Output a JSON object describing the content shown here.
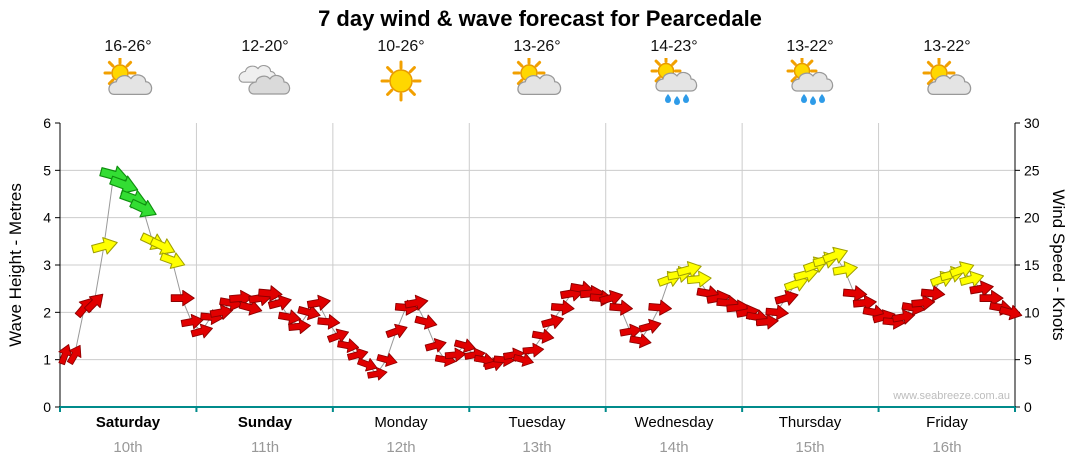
{
  "title": "7 day wind & wave forecast for Pearcedale",
  "watermark": "www.seabreeze.com.au",
  "chart_data": {
    "type": "scatter",
    "subtype": "wind-arrow-timeline",
    "title": "7 day wind & wave forecast for Pearcedale",
    "ylabel_left": "Wave Height - Metres",
    "ylabel_right": "Wind Speed - Knots",
    "left_ylim": [
      0,
      6
    ],
    "right_ylim": [
      0,
      30
    ],
    "left_ticks": [
      0,
      1,
      2,
      3,
      4,
      5,
      6
    ],
    "right_ticks": [
      0,
      5,
      10,
      15,
      20,
      25,
      30
    ],
    "grid": true,
    "legend": "none",
    "days": [
      {
        "name": "Saturday",
        "date": "10th",
        "temp_range": "16-26°",
        "icon": "partly-cloudy",
        "bold": true
      },
      {
        "name": "Sunday",
        "date": "11th",
        "temp_range": "12-20°",
        "icon": "cloudy",
        "bold": true
      },
      {
        "name": "Monday",
        "date": "12th",
        "temp_range": "10-26°",
        "icon": "sunny",
        "bold": false
      },
      {
        "name": "Tuesday",
        "date": "13th",
        "temp_range": "13-26°",
        "icon": "partly-cloudy",
        "bold": false
      },
      {
        "name": "Wednesday",
        "date": "14th",
        "temp_range": "14-23°",
        "icon": "showers",
        "bold": false
      },
      {
        "name": "Thursday",
        "date": "15th",
        "temp_range": "13-22°",
        "icon": "showers",
        "bold": false
      },
      {
        "name": "Friday",
        "date": "16th",
        "temp_range": "13-22°",
        "icon": "partly-cloudy",
        "bold": false
      }
    ],
    "points_per_day": 14,
    "dir_convention": "degrees clockwise from pointing-right",
    "series": [
      {
        "name": "Wind speed (knots) with direction arrows",
        "units": "knots",
        "points": [
          [
            5.5,
            -70
          ],
          [
            5.5,
            -60
          ],
          [
            10.5,
            -50
          ],
          [
            11,
            -45
          ],
          [
            17,
            -15
          ],
          [
            24.5,
            15
          ],
          [
            23.5,
            20
          ],
          [
            22,
            20
          ],
          [
            21,
            25
          ],
          [
            17.5,
            25
          ],
          [
            17,
            25
          ],
          [
            15.5,
            20
          ],
          [
            11.5,
            0
          ],
          [
            9,
            -10
          ],
          [
            8,
            -15
          ],
          [
            9.5,
            5
          ],
          [
            10,
            -10
          ],
          [
            11,
            10
          ],
          [
            11.5,
            -5
          ],
          [
            10.5,
            15
          ],
          [
            11.5,
            -10
          ],
          [
            12,
            5
          ],
          [
            11,
            -15
          ],
          [
            9.5,
            10
          ],
          [
            8.5,
            -5
          ],
          [
            10,
            15
          ],
          [
            11,
            -10
          ],
          [
            9,
            5
          ],
          [
            7.5,
            -20
          ],
          [
            6.5,
            10
          ],
          [
            5.5,
            -15
          ],
          [
            4.5,
            20
          ],
          [
            3.5,
            -10
          ],
          [
            5,
            15
          ],
          [
            8,
            -20
          ],
          [
            10.5,
            5
          ],
          [
            11,
            -10
          ],
          [
            9,
            15
          ],
          [
            6.5,
            -15
          ],
          [
            5,
            10
          ],
          [
            5.5,
            -5
          ],
          [
            6.5,
            15
          ],
          [
            5.5,
            -10
          ],
          [
            5,
            10
          ],
          [
            4.5,
            -15
          ],
          [
            5,
            5
          ],
          [
            5.5,
            -10
          ],
          [
            5,
            15
          ],
          [
            6,
            -5
          ],
          [
            7.5,
            10
          ],
          [
            9,
            -15
          ],
          [
            10.5,
            5
          ],
          [
            12,
            -10
          ],
          [
            12.5,
            10
          ],
          [
            12,
            -5
          ],
          [
            11.5,
            5
          ],
          [
            11.5,
            -15
          ],
          [
            10.5,
            5
          ],
          [
            8,
            -10
          ],
          [
            7,
            10
          ],
          [
            8.5,
            -15
          ],
          [
            10.5,
            5
          ],
          [
            13.5,
            -20
          ],
          [
            14,
            -10
          ],
          [
            14.5,
            -15
          ],
          [
            13.5,
            -5
          ],
          [
            12,
            10
          ],
          [
            11.5,
            -10
          ],
          [
            11,
            5
          ],
          [
            10.5,
            -5
          ],
          [
            10,
            -10
          ],
          [
            9.5,
            10
          ],
          [
            9,
            -5
          ],
          [
            10,
            5
          ],
          [
            11.5,
            -15
          ],
          [
            13,
            -20
          ],
          [
            14,
            -15
          ],
          [
            15,
            -20
          ],
          [
            15.5,
            -15
          ],
          [
            16,
            -20
          ],
          [
            14.5,
            -10
          ],
          [
            12,
            5
          ],
          [
            11,
            -5
          ],
          [
            10,
            10
          ],
          [
            9.5,
            -15
          ],
          [
            9,
            5
          ],
          [
            9.5,
            -10
          ],
          [
            10.5,
            10
          ],
          [
            11,
            -5
          ],
          [
            12,
            5
          ],
          [
            13.5,
            -20
          ],
          [
            14,
            -15
          ],
          [
            14.5,
            -20
          ],
          [
            13.5,
            -15
          ],
          [
            12.5,
            -10
          ],
          [
            11.5,
            0
          ],
          [
            10.5,
            10
          ],
          [
            10,
            15
          ]
        ]
      }
    ],
    "color_thresholds": {
      "yellow_min_knots": 13,
      "green_min_knots": 19
    },
    "colors": {
      "arrow_red": "#E10000",
      "arrow_red_stroke": "#8F0000",
      "arrow_yellow": "#FFFF00",
      "arrow_yellow_stroke": "#9F9F00",
      "arrow_green": "#33DD33",
      "arrow_green_stroke": "#0E8F0E",
      "line": "#999999",
      "grid": "#CCCCCC",
      "axis_x": "#008B8B",
      "axis_y": "#000000",
      "date_label": "#999999",
      "day_label": "#000000"
    }
  }
}
